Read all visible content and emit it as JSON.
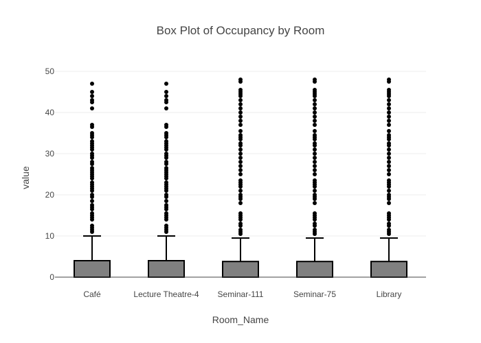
{
  "chart_data": {
    "type": "box",
    "title": "Box Plot of Occupancy by Room",
    "xlabel": "Room_Name",
    "ylabel": "value",
    "ylim": [
      0,
      50
    ],
    "yticks": [
      0,
      10,
      20,
      30,
      40,
      50
    ],
    "grid": true,
    "legend": "none",
    "colors": {
      "box_fill": "#808080",
      "box_line": "#000000",
      "points": "#000000",
      "grid": "#eeeeee"
    },
    "categories": [
      "Café",
      "Lecture Theatre-4",
      "Seminar-111",
      "Seminar-75",
      "Library"
    ],
    "boxes": [
      {
        "name": "Café",
        "lower_fence": 0,
        "q1": 0,
        "median": 0,
        "q3": 4,
        "upper_fence": 10,
        "outliers": [
          11,
          11.5,
          12,
          12.5,
          14,
          14.5,
          15,
          15.5,
          16.5,
          17,
          17.5,
          18.5,
          19.5,
          20,
          21,
          21.5,
          22,
          22.5,
          23,
          24,
          24.5,
          25,
          25.5,
          26,
          26.5,
          27.5,
          28,
          29,
          29.5,
          30,
          31,
          31.5,
          32,
          32.5,
          33,
          34,
          34.5,
          35,
          36.5,
          37,
          41,
          42.5,
          43,
          44,
          45,
          47
        ]
      },
      {
        "name": "Lecture Theatre-4",
        "lower_fence": 0,
        "q1": 0,
        "median": 0,
        "q3": 4,
        "upper_fence": 10,
        "outliers": [
          11,
          11.5,
          12,
          12.5,
          14,
          14.5,
          15,
          15.5,
          16.5,
          17,
          17.5,
          18.5,
          19.5,
          20,
          21,
          21.5,
          22,
          22.5,
          23,
          24,
          24.5,
          25,
          25.5,
          26,
          26.5,
          27.5,
          28,
          29,
          29.5,
          30,
          31,
          31.5,
          32,
          32.5,
          33,
          34,
          34.5,
          35,
          36.5,
          37,
          41,
          42.5,
          43,
          44,
          45,
          47
        ]
      },
      {
        "name": "Seminar-111",
        "lower_fence": 0,
        "q1": 0,
        "median": 0,
        "q3": 3.8,
        "upper_fence": 9.5,
        "outliers": [
          10.5,
          11,
          11.5,
          12.5,
          13,
          14,
          14.5,
          15,
          15.5,
          18,
          19,
          19.5,
          20,
          21,
          22,
          22.5,
          23,
          23.5,
          25,
          26,
          27,
          28,
          29,
          30,
          31,
          32,
          32.5,
          33.5,
          34,
          34.5,
          35.5,
          37,
          38,
          39,
          40,
          41,
          42,
          43,
          44,
          44.5,
          45,
          45.5,
          47.5,
          48
        ]
      },
      {
        "name": "Seminar-75",
        "lower_fence": 0,
        "q1": 0,
        "median": 0,
        "q3": 3.8,
        "upper_fence": 9.5,
        "outliers": [
          10.5,
          11,
          11.5,
          12.5,
          13,
          14,
          14.5,
          15,
          15.5,
          18,
          19,
          19.5,
          20,
          21,
          22,
          22.5,
          23,
          23.5,
          25,
          26,
          27,
          28,
          29,
          30,
          31,
          32,
          32.5,
          33.5,
          34,
          34.5,
          35.5,
          37,
          38,
          39,
          40,
          41,
          42,
          43,
          44,
          44.5,
          45,
          45.5,
          47.5,
          48
        ]
      },
      {
        "name": "Library",
        "lower_fence": 0,
        "q1": 0,
        "median": 0,
        "q3": 3.8,
        "upper_fence": 9.5,
        "outliers": [
          10.5,
          11,
          11.5,
          12.5,
          13,
          14,
          14.5,
          15,
          15.5,
          18,
          19,
          19.5,
          20,
          21,
          22,
          22.5,
          23,
          23.5,
          25,
          26,
          27,
          28,
          29,
          30,
          31,
          32,
          32.5,
          33.5,
          34,
          34.5,
          35.5,
          37,
          38,
          39,
          40,
          41,
          42,
          43,
          44,
          44.5,
          45,
          45.5,
          47.5,
          48
        ]
      }
    ]
  }
}
